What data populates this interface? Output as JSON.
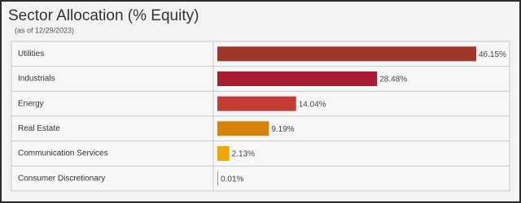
{
  "chart_data": {
    "type": "bar",
    "orientation": "horizontal",
    "title": "Sector Allocation (% Equity)",
    "subtitle": "(as of 12/29/2023)",
    "categories": [
      "Utilities",
      "Industrials",
      "Energy",
      "Real Estate",
      "Communication Services",
      "Consumer Discretionary"
    ],
    "values": [
      46.15,
      28.48,
      14.04,
      9.19,
      2.13,
      0.01
    ],
    "value_labels": [
      "46.15%",
      "28.48%",
      "14.04%",
      "9.19%",
      "2.13%",
      "0.01%"
    ],
    "colors": [
      "#a1362a",
      "#a81b33",
      "#c33d36",
      "#d4830b",
      "#f0a800",
      "#999999"
    ]
  }
}
